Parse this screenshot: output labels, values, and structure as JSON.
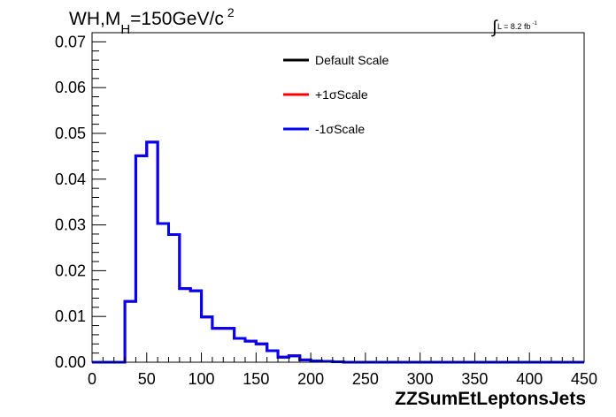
{
  "title": {
    "main": "WH,M",
    "sub": "H",
    "rest": "=150GeV/c",
    "sup": "2"
  },
  "lumi": {
    "sym": "∫",
    "text": "L = 8.2 fb",
    "sup": "-1"
  },
  "chart_data": {
    "type": "line",
    "subtype": "histogram-step",
    "xlabel": "ZZSumEtLeptonsJets",
    "ylabel": "",
    "xlim": [
      0,
      450
    ],
    "ylim": [
      0,
      0.072
    ],
    "x_ticks": [
      0,
      50,
      100,
      150,
      200,
      250,
      300,
      350,
      400,
      450
    ],
    "y_ticks": [
      0.0,
      0.01,
      0.02,
      0.03,
      0.04,
      0.05,
      0.06,
      0.07
    ],
    "x_tick_labels": [
      "0",
      "50",
      "100",
      "150",
      "200",
      "250",
      "300",
      "350",
      "400",
      "450"
    ],
    "y_tick_labels": [
      "0.00",
      "0.01",
      "0.02",
      "0.03",
      "0.04",
      "0.05",
      "0.06",
      "0.07"
    ],
    "bin_width": 10,
    "bin_edges_start": 0,
    "grid": false,
    "legend": {
      "placement": "top-center"
    },
    "series": [
      {
        "name": "Default Scale",
        "color": "#000000",
        "values": [
          0,
          0,
          0,
          0.0133,
          0.0451,
          0.0481,
          0.0303,
          0.0279,
          0.0161,
          0.0156,
          0.0099,
          0.0074,
          0.0074,
          0.0052,
          0.0046,
          0.004,
          0.0025,
          0.0011,
          0.0014,
          0.0005,
          0.0003,
          0.0002,
          0.0001,
          0,
          0,
          0,
          0,
          0,
          0,
          0,
          0,
          0,
          0,
          0,
          0,
          0,
          0,
          0,
          0,
          0,
          0,
          0,
          0,
          0,
          0
        ]
      },
      {
        "name": "+1σScale",
        "color": "#ff0000",
        "values": [
          0,
          0,
          0,
          0.0133,
          0.0451,
          0.0481,
          0.0303,
          0.0279,
          0.0161,
          0.0156,
          0.0099,
          0.0074,
          0.0074,
          0.0052,
          0.0046,
          0.004,
          0.0025,
          0.0011,
          0.0014,
          0.0005,
          0.0003,
          0.0002,
          0.0001,
          0,
          0,
          0,
          0,
          0,
          0,
          0,
          0,
          0,
          0,
          0,
          0,
          0,
          0,
          0,
          0,
          0,
          0,
          0,
          0,
          0,
          0
        ]
      },
      {
        "name": "-1σScale",
        "color": "#0000ff",
        "values": [
          0,
          0,
          0,
          0.0133,
          0.0451,
          0.0481,
          0.0303,
          0.0279,
          0.0161,
          0.0156,
          0.0099,
          0.0074,
          0.0074,
          0.0052,
          0.0046,
          0.004,
          0.0025,
          0.0011,
          0.0014,
          0.0005,
          0.0003,
          0.0002,
          0.0001,
          0,
          0,
          0,
          0,
          0,
          0,
          0,
          0,
          0,
          0,
          0,
          0,
          0,
          0,
          0,
          0,
          0,
          0,
          0,
          0,
          0,
          0
        ]
      }
    ]
  }
}
